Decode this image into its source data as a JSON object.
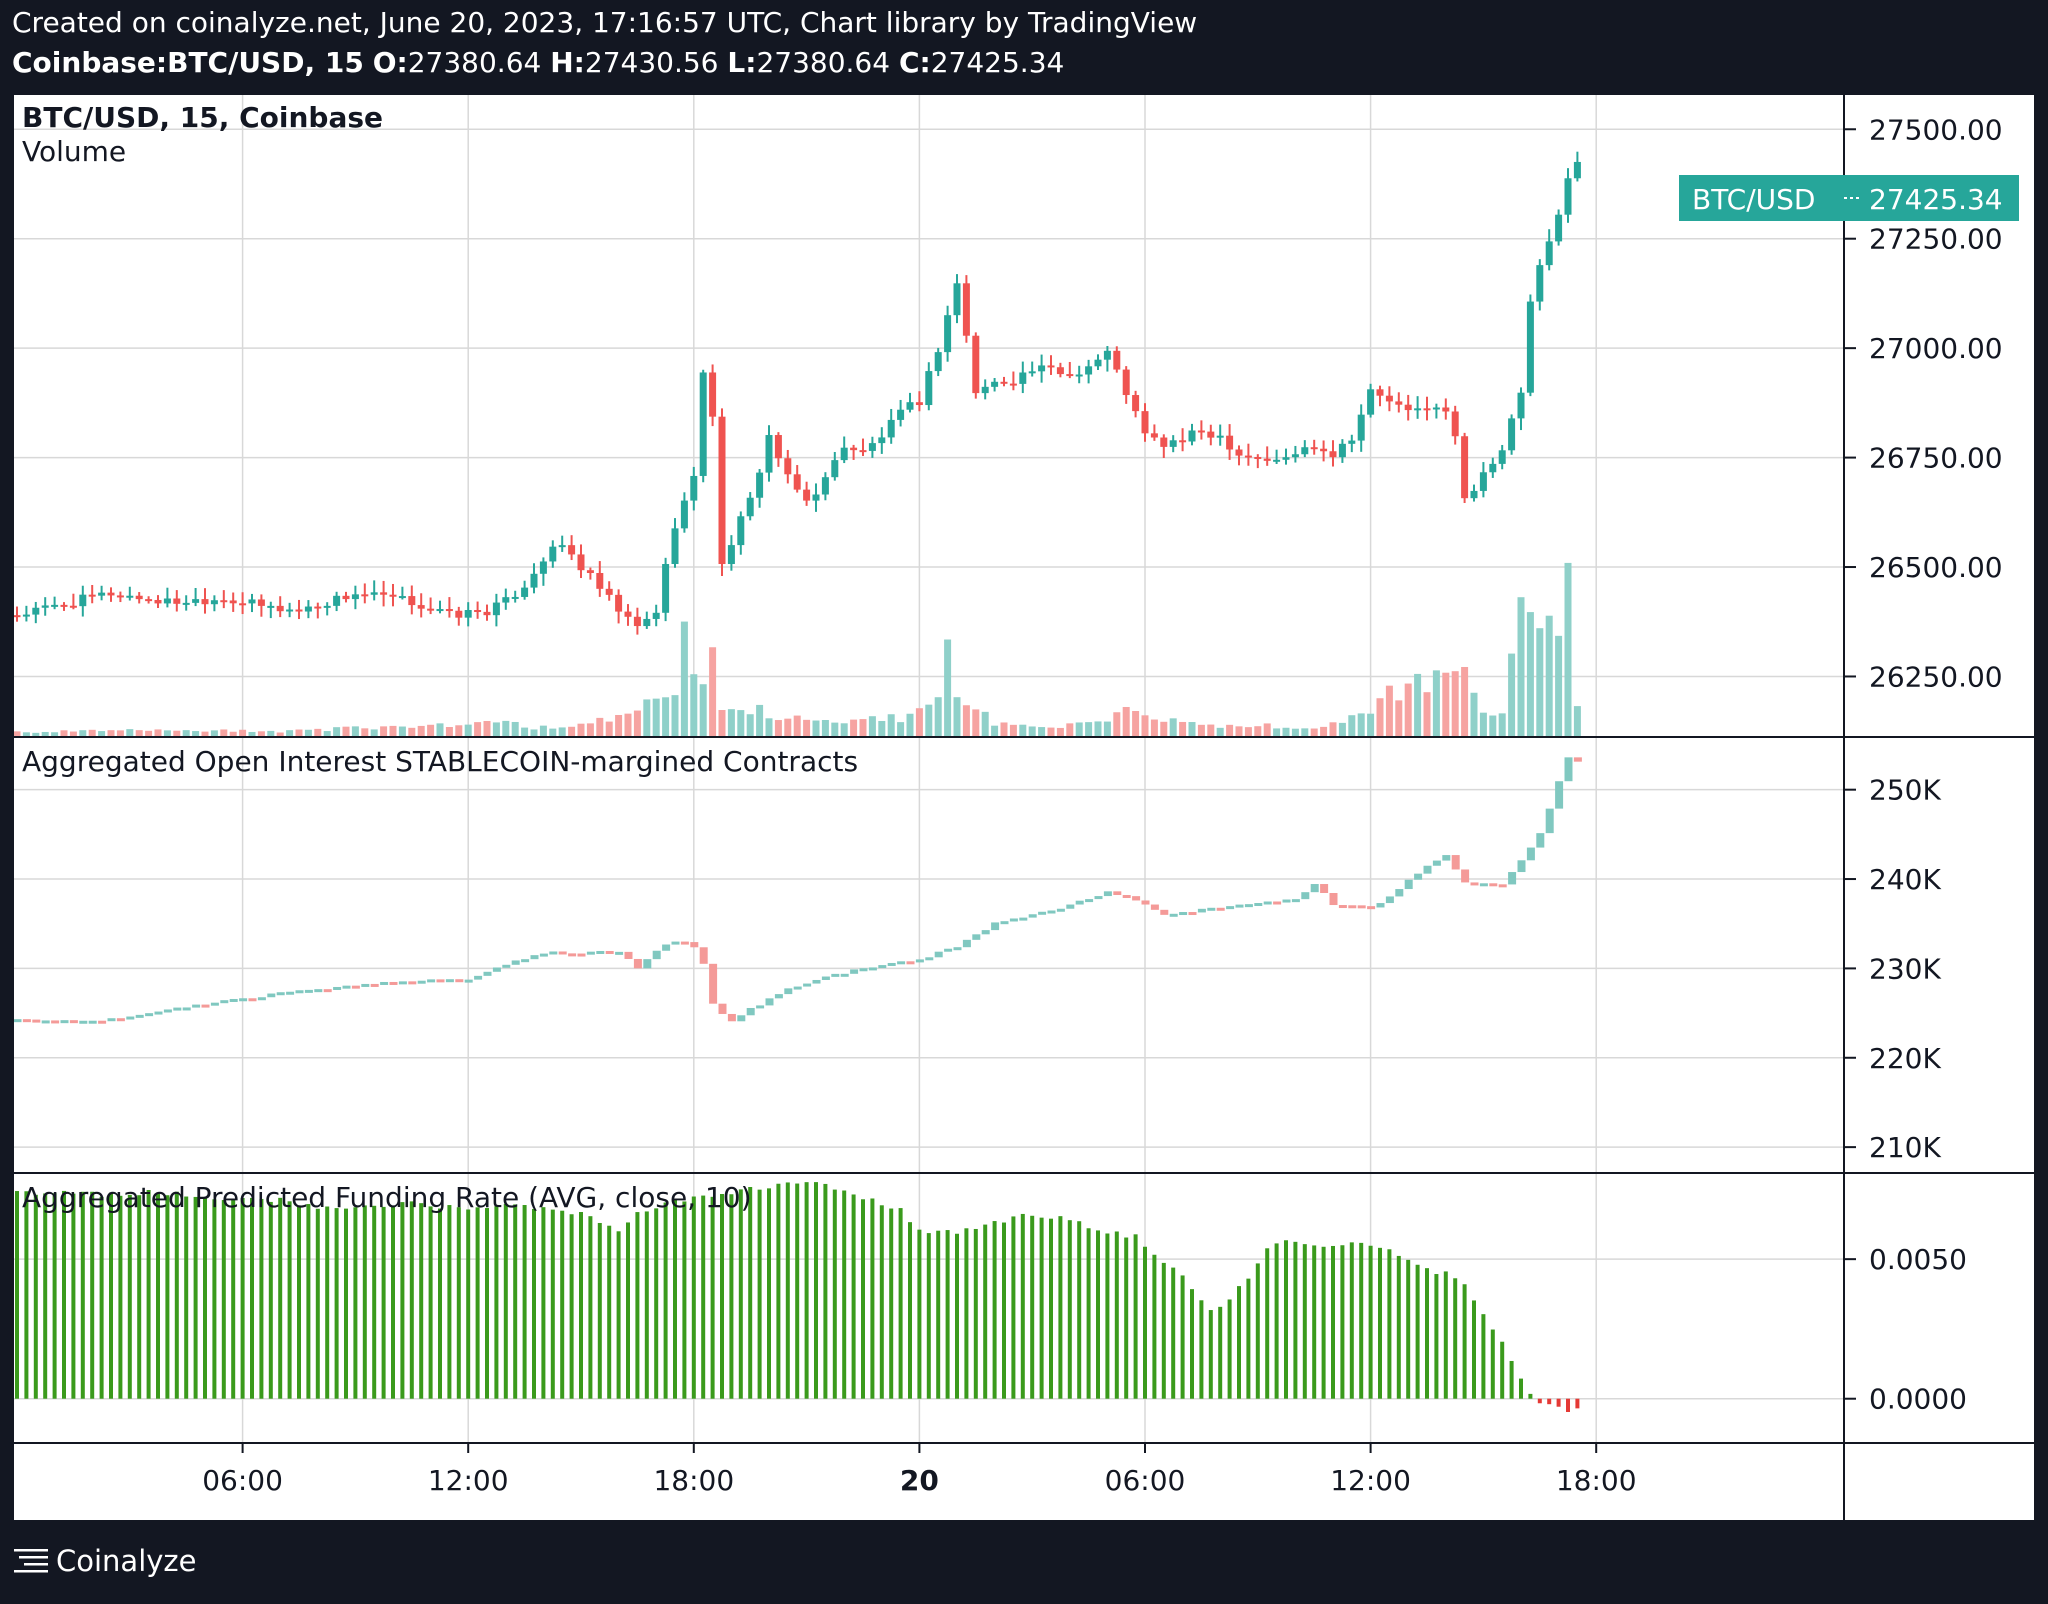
{
  "header": {
    "line1": "Created on coinalyze.net, June 20, 2023, 17:16:57 UTC, Chart library by TradingView",
    "symbol": "Coinbase:BTC/USD, 15",
    "o_label": "O:",
    "o_value": "27380.64",
    "h_label": "H:",
    "h_value": "27430.56",
    "l_label": "L:",
    "l_value": "27380.64",
    "c_label": "C:",
    "c_value": "27425.34"
  },
  "footer": {
    "brand": "Coinalyze"
  },
  "colors": {
    "up": "#26a69a",
    "down": "#ef5350",
    "funding": "#3a9a1c",
    "bg": "#ffffff",
    "grid": "#d8d8d8",
    "outer": "#131722"
  },
  "chart_data": [
    {
      "type": "candlestick",
      "title": "BTC/USD, 15, Coinbase",
      "subtitle": "Volume",
      "price_label": "BTC/USD",
      "last_price_label": "27425.34",
      "last_price": 27425.34,
      "y_ticks": [
        "27500.00",
        "27250.00",
        "27000.00",
        "26750.00",
        "26500.00",
        "26250.00"
      ],
      "y_tick_values": [
        27500,
        27250,
        27000,
        26750,
        26500,
        26250
      ],
      "ylim": [
        26130,
        27560
      ],
      "x_ticks": [
        "06:00",
        "12:00",
        "18:00",
        "20",
        "06:00",
        "12:00",
        "18:00"
      ],
      "x_tick_bars": [
        24,
        48,
        72,
        96,
        120,
        144,
        168
      ],
      "price_path": [
        [
          0,
          26390
        ],
        [
          6,
          26420
        ],
        [
          10,
          26440
        ],
        [
          16,
          26420
        ],
        [
          22,
          26430
        ],
        [
          26,
          26410
        ],
        [
          30,
          26400
        ],
        [
          36,
          26440
        ],
        [
          42,
          26420
        ],
        [
          46,
          26390
        ],
        [
          50,
          26400
        ],
        [
          52,
          26420
        ],
        [
          54,
          26460
        ],
        [
          56,
          26520
        ],
        [
          58,
          26550
        ],
        [
          60,
          26500
        ],
        [
          64,
          26400
        ],
        [
          66,
          26360
        ],
        [
          68,
          26400
        ],
        [
          70,
          26600
        ],
        [
          72,
          26700
        ],
        [
          73,
          26950
        ],
        [
          74,
          26850
        ],
        [
          75,
          26500
        ],
        [
          76,
          26560
        ],
        [
          78,
          26650
        ],
        [
          80,
          26800
        ],
        [
          82,
          26700
        ],
        [
          84,
          26650
        ],
        [
          86,
          26700
        ],
        [
          88,
          26780
        ],
        [
          90,
          26760
        ],
        [
          92,
          26800
        ],
        [
          94,
          26850
        ],
        [
          96,
          26880
        ],
        [
          98,
          27000
        ],
        [
          100,
          27150
        ],
        [
          102,
          26900
        ],
        [
          104,
          26920
        ],
        [
          106,
          26930
        ],
        [
          108,
          26950
        ],
        [
          110,
          26950
        ],
        [
          112,
          26940
        ],
        [
          114,
          26960
        ],
        [
          116,
          26990
        ],
        [
          118,
          26900
        ],
        [
          120,
          26800
        ],
        [
          122,
          26780
        ],
        [
          124,
          26790
        ],
        [
          126,
          26810
        ],
        [
          128,
          26800
        ],
        [
          130,
          26760
        ],
        [
          134,
          26740
        ],
        [
          136,
          26760
        ],
        [
          138,
          26780
        ],
        [
          140,
          26760
        ],
        [
          142,
          26800
        ],
        [
          144,
          26900
        ],
        [
          146,
          26880
        ],
        [
          148,
          26850
        ],
        [
          150,
          26870
        ],
        [
          152,
          26850
        ],
        [
          153,
          26800
        ],
        [
          154,
          26650
        ],
        [
          156,
          26720
        ],
        [
          158,
          26760
        ],
        [
          160,
          26900
        ],
        [
          161,
          27100
        ],
        [
          162,
          27180
        ],
        [
          164,
          27300
        ],
        [
          165,
          27400
        ],
        [
          166,
          27370
        ],
        [
          167,
          27390
        ],
        [
          168,
          27425.34
        ]
      ],
      "volume_path": [
        [
          0,
          1
        ],
        [
          14,
          1.4
        ],
        [
          28,
          1.2
        ],
        [
          40,
          2.2
        ],
        [
          46,
          2.5
        ],
        [
          50,
          3
        ],
        [
          52,
          3.5
        ],
        [
          55,
          2
        ],
        [
          60,
          2.5
        ],
        [
          64,
          4
        ],
        [
          66,
          6
        ],
        [
          68,
          9
        ],
        [
          70,
          8
        ],
        [
          71,
          20
        ],
        [
          72,
          13
        ],
        [
          73,
          10
        ],
        [
          74,
          16
        ],
        [
          75,
          7
        ],
        [
          78,
          6
        ],
        [
          82,
          4
        ],
        [
          86,
          3
        ],
        [
          90,
          4
        ],
        [
          94,
          4
        ],
        [
          96,
          5
        ],
        [
          98,
          8
        ],
        [
          99,
          17
        ],
        [
          100,
          10
        ],
        [
          104,
          3
        ],
        [
          110,
          2
        ],
        [
          116,
          3
        ],
        [
          118,
          6
        ],
        [
          120,
          4
        ],
        [
          126,
          2.5
        ],
        [
          132,
          2.5
        ],
        [
          138,
          2
        ],
        [
          140,
          2.5
        ],
        [
          142,
          4
        ],
        [
          144,
          6
        ],
        [
          146,
          9
        ],
        [
          148,
          11
        ],
        [
          150,
          12
        ],
        [
          152,
          11
        ],
        [
          154,
          13
        ],
        [
          156,
          6
        ],
        [
          158,
          5
        ],
        [
          159,
          16
        ],
        [
          160,
          31
        ],
        [
          161,
          22
        ],
        [
          162,
          28
        ],
        [
          163,
          24
        ],
        [
          164,
          22
        ],
        [
          165,
          30
        ],
        [
          166,
          6
        ]
      ],
      "volume_max": 40
    },
    {
      "type": "bar",
      "title": "Aggregated Open Interest STABLECOIN-margined Contracts",
      "y_ticks": [
        "250K",
        "240K",
        "230K",
        "220K",
        "210K"
      ],
      "y_tick_values": [
        250000,
        240000,
        230000,
        220000,
        210000
      ],
      "ylim": [
        208000,
        255000
      ],
      "path": [
        [
          0,
          224200
        ],
        [
          8,
          224000
        ],
        [
          12,
          224600
        ],
        [
          20,
          226000
        ],
        [
          30,
          227500
        ],
        [
          40,
          228500
        ],
        [
          48,
          228800
        ],
        [
          52,
          230500
        ],
        [
          56,
          231800
        ],
        [
          60,
          231700
        ],
        [
          64,
          231900
        ],
        [
          66,
          230000
        ],
        [
          68,
          232000
        ],
        [
          70,
          233100
        ],
        [
          72,
          232500
        ],
        [
          73,
          230500
        ],
        [
          74,
          226000
        ],
        [
          76,
          224000
        ],
        [
          78,
          225500
        ],
        [
          80,
          226500
        ],
        [
          82,
          227800
        ],
        [
          86,
          229000
        ],
        [
          90,
          230000
        ],
        [
          96,
          231000
        ],
        [
          100,
          232500
        ],
        [
          104,
          235000
        ],
        [
          110,
          236500
        ],
        [
          114,
          237800
        ],
        [
          116,
          238500
        ],
        [
          118,
          238200
        ],
        [
          120,
          237000
        ],
        [
          122,
          236000
        ],
        [
          128,
          236800
        ],
        [
          132,
          237400
        ],
        [
          136,
          237700
        ],
        [
          138,
          239500
        ],
        [
          140,
          237200
        ],
        [
          144,
          236700
        ],
        [
          146,
          238000
        ],
        [
          148,
          240000
        ],
        [
          150,
          241500
        ],
        [
          152,
          242600
        ],
        [
          153,
          241000
        ],
        [
          154,
          239500
        ],
        [
          158,
          239400
        ],
        [
          160,
          242000
        ],
        [
          162,
          245000
        ],
        [
          163,
          248000
        ],
        [
          164,
          251000
        ],
        [
          165,
          253500
        ],
        [
          166,
          253200
        ]
      ]
    },
    {
      "type": "bar",
      "title": "Aggregated Predicted Funding Rate (AVG, close, 10)",
      "y_ticks": [
        "0.0050",
        "0.0000"
      ],
      "y_tick_values": [
        0.005,
        0
      ],
      "ylim": [
        -0.0013,
        0.0078
      ],
      "path": [
        [
          0,
          0.0074
        ],
        [
          10,
          0.0073
        ],
        [
          14,
          0.0074
        ],
        [
          18,
          0.0073
        ],
        [
          22,
          0.0071
        ],
        [
          26,
          0.0072
        ],
        [
          34,
          0.0068
        ],
        [
          42,
          0.007
        ],
        [
          48,
          0.0068
        ],
        [
          52,
          0.007
        ],
        [
          56,
          0.0068
        ],
        [
          60,
          0.0066
        ],
        [
          64,
          0.006
        ],
        [
          66,
          0.0066
        ],
        [
          70,
          0.0071
        ],
        [
          74,
          0.0073
        ],
        [
          78,
          0.0075
        ],
        [
          82,
          0.0077
        ],
        [
          86,
          0.0077
        ],
        [
          90,
          0.0072
        ],
        [
          94,
          0.0068
        ],
        [
          96,
          0.006
        ],
        [
          100,
          0.006
        ],
        [
          104,
          0.0063
        ],
        [
          108,
          0.0066
        ],
        [
          112,
          0.0064
        ],
        [
          116,
          0.006
        ],
        [
          119,
          0.0058
        ],
        [
          121,
          0.0052
        ],
        [
          124,
          0.0044
        ],
        [
          127,
          0.0032
        ],
        [
          129,
          0.0035
        ],
        [
          131,
          0.0044
        ],
        [
          133,
          0.0054
        ],
        [
          135,
          0.0057
        ],
        [
          138,
          0.0055
        ],
        [
          142,
          0.0056
        ],
        [
          146,
          0.0054
        ],
        [
          150,
          0.0046
        ],
        [
          153,
          0.0044
        ],
        [
          154,
          0.0041
        ],
        [
          156,
          0.003
        ],
        [
          157,
          0.0025
        ],
        [
          158,
          0.002
        ],
        [
          159,
          0.0013
        ],
        [
          160,
          0.0008
        ],
        [
          161,
          0.0002
        ],
        [
          162,
          -0.0001
        ],
        [
          163,
          -0.0002
        ],
        [
          164,
          -0.0003
        ],
        [
          165,
          -0.0004
        ]
      ]
    }
  ]
}
